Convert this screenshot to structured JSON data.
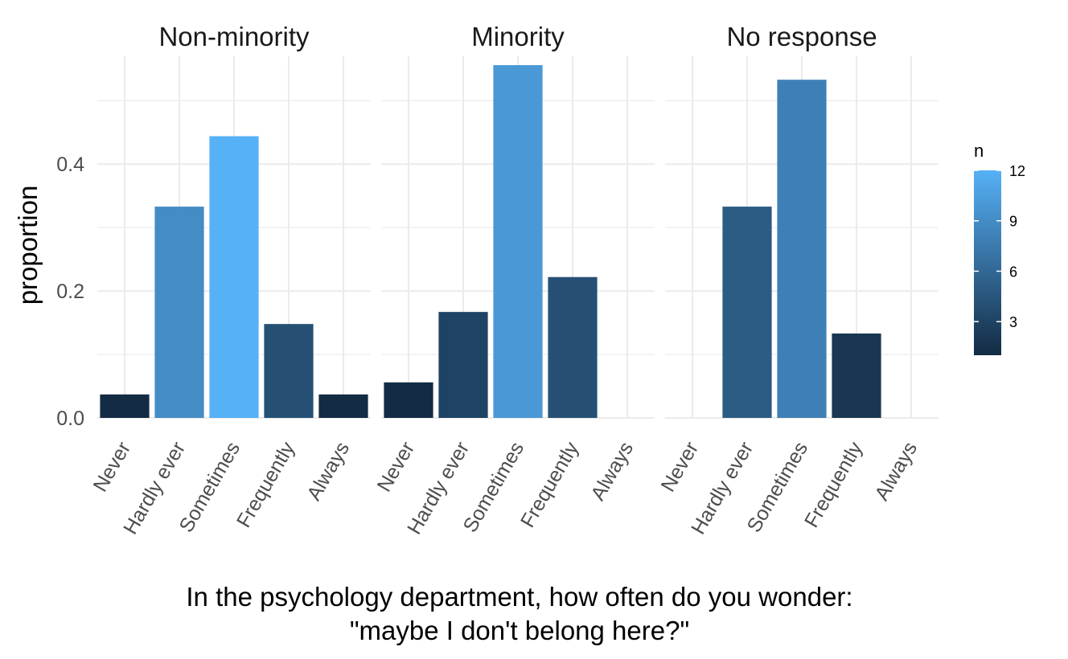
{
  "chart_data": {
    "type": "bar",
    "ylabel": "proportion",
    "xlabel_lines": [
      "In the psychology department, how often do you wonder:",
      "\"maybe I don't belong here?\""
    ],
    "categories": [
      "Never",
      "Hardly ever",
      "Sometimes",
      "Frequently",
      "Always"
    ],
    "ylim": [
      0,
      0.57
    ],
    "yticks": [
      0.0,
      0.2,
      0.4
    ],
    "ytick_labels": [
      "0.0",
      "0.2",
      "0.4"
    ],
    "grid": true,
    "fill_variable": "n",
    "panels": [
      {
        "name": "Non-minority",
        "values": [
          0.037,
          0.333,
          0.444,
          0.148,
          0.037
        ],
        "n": [
          1,
          9,
          12,
          4,
          1
        ]
      },
      {
        "name": "Minority",
        "values": [
          0.056,
          0.167,
          0.556,
          0.222,
          0
        ],
        "n": [
          1,
          3,
          10,
          4,
          0
        ]
      },
      {
        "name": "No response",
        "values": [
          0,
          0.333,
          0.533,
          0.133,
          0
        ],
        "n": [
          0,
          5,
          8,
          2,
          0
        ]
      }
    ],
    "legend": {
      "title": "n",
      "placement": "right",
      "range": [
        1,
        12
      ],
      "ticks": [
        3,
        6,
        9,
        12
      ],
      "color_low": "#132B43",
      "color_high": "#56B1F7"
    }
  }
}
